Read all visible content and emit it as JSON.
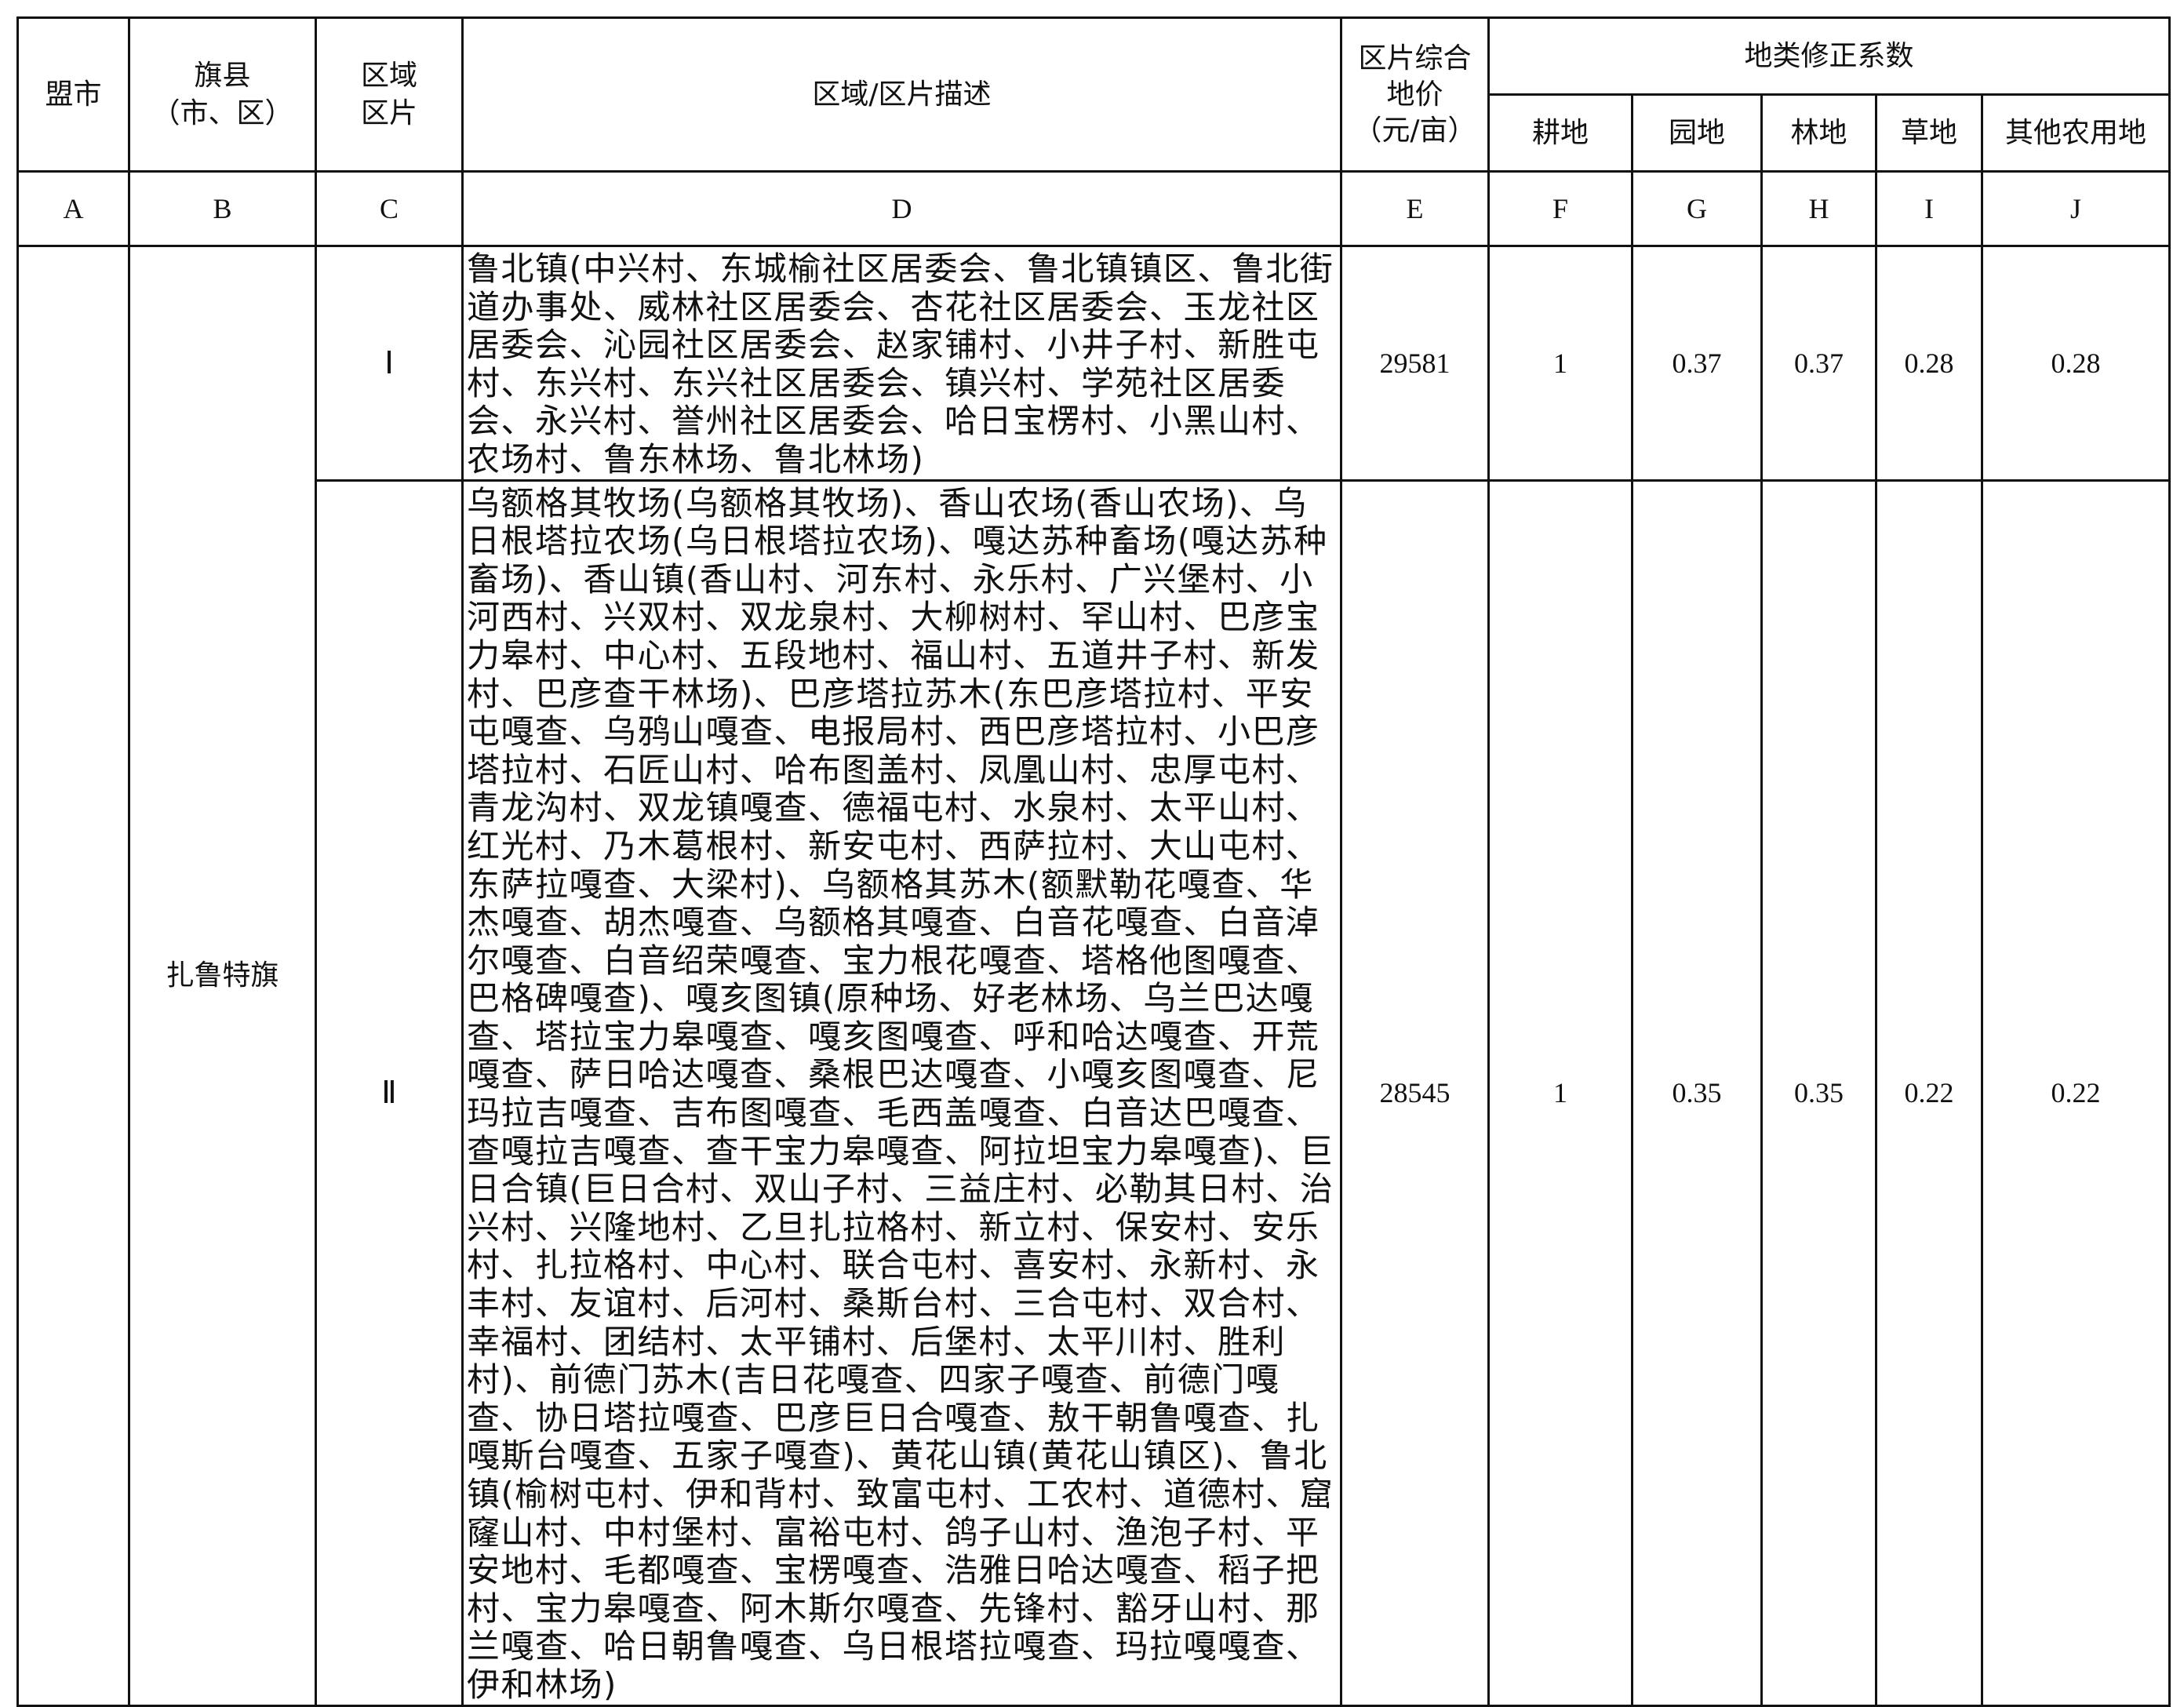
{
  "header": {
    "col_a": "盟市",
    "col_b": "旗县\n（市、区）",
    "col_c": "区域\n区片",
    "col_d": "区域/区片描述",
    "col_e": "区片综合\n地价\n（元/亩）",
    "group_fj": "地类修正系数",
    "col_f": "耕地",
    "col_g": "园地",
    "col_h": "林地",
    "col_i": "草地",
    "col_j": "其他农用地"
  },
  "letters": [
    "A",
    "B",
    "C",
    "D",
    "E",
    "F",
    "G",
    "H",
    "I",
    "J"
  ],
  "county": "扎鲁特旗",
  "rows": [
    {
      "zone": "Ⅰ",
      "description": "鲁北镇(中兴村、东城榆社区居委会、鲁北镇镇区、鲁北街道办事处、威林社区居委会、杏花社区居委会、玉龙社区居委会、沁园社区居委会、赵家铺村、小井子村、新胜屯村、东兴村、东兴社区居委会、镇兴村、学苑社区居委会、永兴村、誉州社区居委会、哈日宝楞村、小黑山村、农场村、鲁东林场、鲁北林场)",
      "price": "29581",
      "farmland": "1",
      "garden": "0.37",
      "forest": "0.37",
      "grass": "0.28",
      "other": "0.28"
    },
    {
      "zone": "Ⅱ",
      "description": "乌额格其牧场(乌额格其牧场)、香山农场(香山农场)、乌日根塔拉农场(乌日根塔拉农场)、嘎达苏种畜场(嘎达苏种畜场)、香山镇(香山村、河东村、永乐村、广兴堡村、小河西村、兴双村、双龙泉村、大柳树村、罕山村、巴彦宝力皋村、中心村、五段地村、福山村、五道井子村、新发村、巴彦查干林场)、巴彦塔拉苏木(东巴彦塔拉村、平安屯嘎查、乌鸦山嘎查、电报局村、西巴彦塔拉村、小巴彦塔拉村、石匠山村、哈布图盖村、凤凰山村、忠厚屯村、青龙沟村、双龙镇嘎查、德福屯村、水泉村、太平山村、红光村、乃木葛根村、新安屯村、西萨拉村、大山屯村、东萨拉嘎查、大梁村)、乌额格其苏木(额默勒花嘎查、华杰嘎查、胡杰嘎查、乌额格其嘎查、白音花嘎查、白音淖尔嘎查、白音绍荣嘎查、宝力根花嘎查、塔格他图嘎查、巴格碑嘎查)、嘎亥图镇(原种场、好老林场、乌兰巴达嘎查、塔拉宝力皋嘎查、嘎亥图嘎查、呼和哈达嘎查、开荒嘎查、萨日哈达嘎查、桑根巴达嘎查、小嘎亥图嘎查、尼玛拉吉嘎查、吉布图嘎查、毛西盖嘎查、白音达巴嘎查、查嘎拉吉嘎查、查干宝力皋嘎查、阿拉坦宝力皋嘎查)、巨日合镇(巨日合村、双山子村、三益庄村、必勒其日村、治兴村、兴隆地村、乙旦扎拉格村、新立村、保安村、安乐村、扎拉格村、中心村、联合屯村、喜安村、永新村、永丰村、友谊村、后河村、桑斯台村、三合屯村、双合村、幸福村、团结村、太平铺村、后堡村、太平川村、胜利村)、前德门苏木(吉日花嘎查、四家子嘎查、前德门嘎查、协日塔拉嘎查、巴彦巨日合嘎查、敖干朝鲁嘎查、扎嘎斯台嘎查、五家子嘎查)、黄花山镇(黄花山镇区)、鲁北镇(榆树屯村、伊和背村、致富屯村、工农村、道德村、窟窿山村、中村堡村、富裕屯村、鸽子山村、渔泡子村、平安地村、毛都嘎查、宝楞嘎查、浩雅日哈达嘎查、稻子把村、宝力皋嘎查、阿木斯尔嘎查、先锋村、豁牙山村、那兰嘎查、哈日朝鲁嘎查、乌日根塔拉嘎查、玛拉嘎嘎查、伊和林场)",
      "price": "28545",
      "farmland": "1",
      "garden": "0.35",
      "forest": "0.35",
      "grass": "0.22",
      "other": "0.22"
    }
  ]
}
